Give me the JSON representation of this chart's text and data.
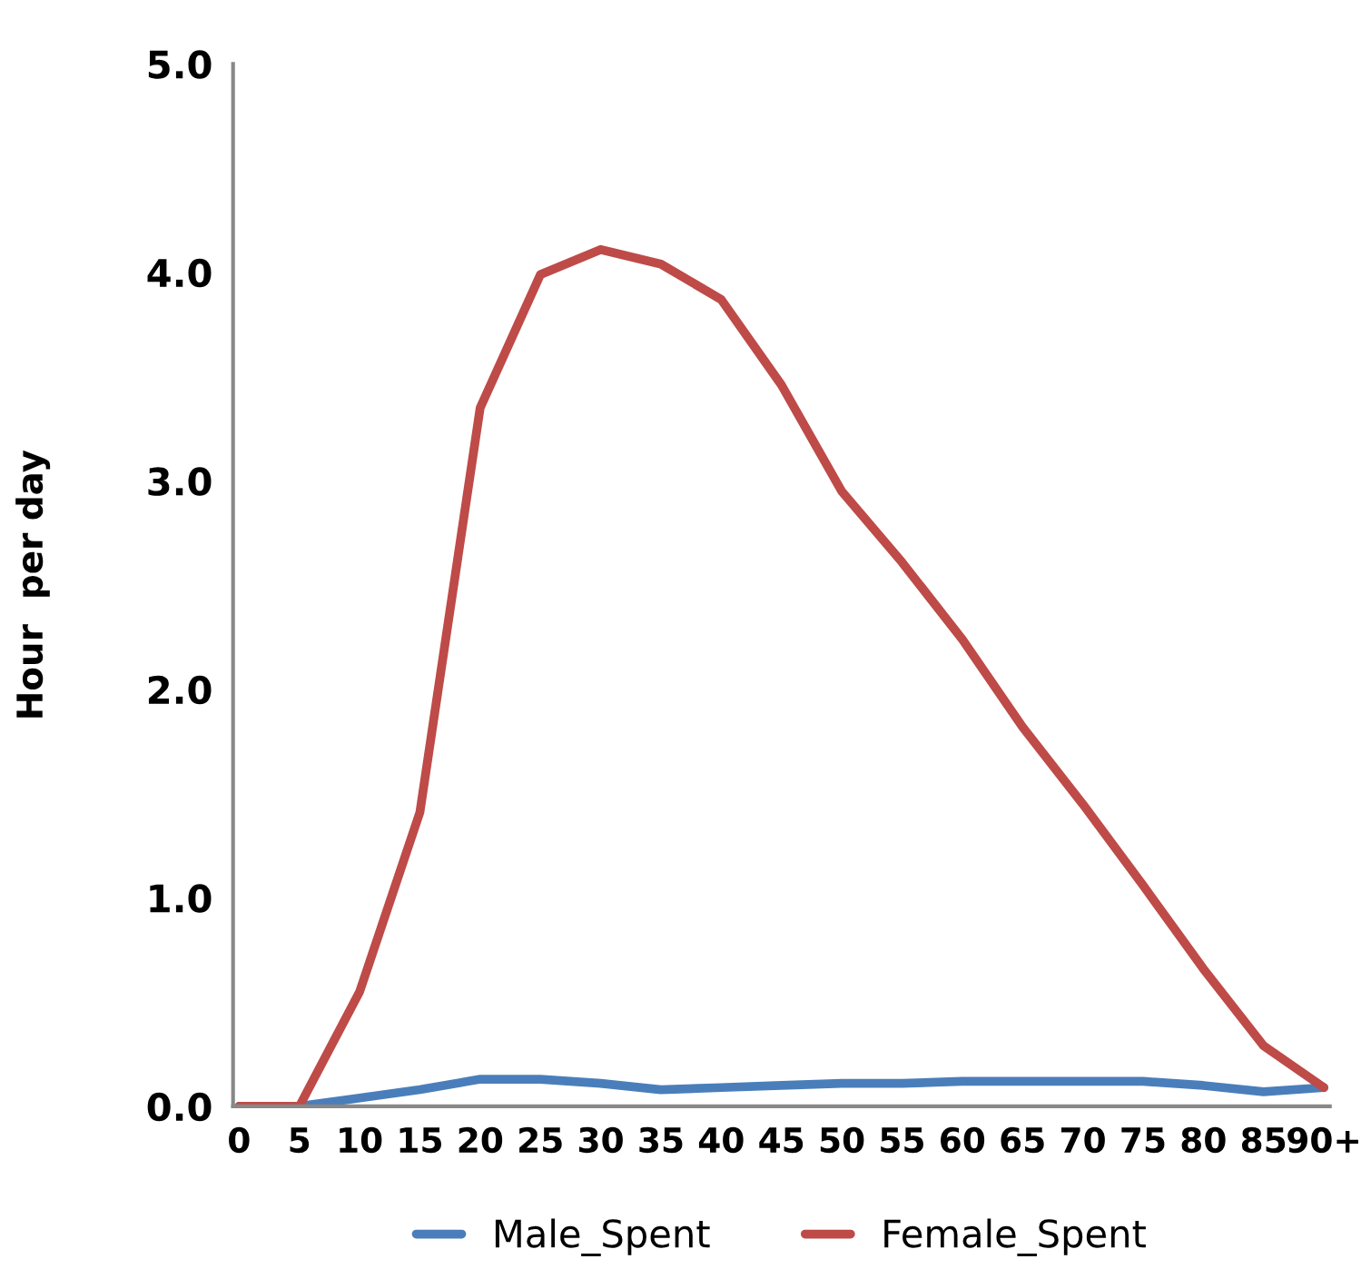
{
  "chart_data": {
    "type": "line",
    "ylabel": "Hour  per day",
    "categories": [
      "0",
      "5",
      "10",
      "15",
      "20",
      "25",
      "30",
      "35",
      "40",
      "45",
      "50",
      "55",
      "60",
      "65",
      "70",
      "75",
      "80",
      "85",
      "90+"
    ],
    "series": [
      {
        "name": "Male_Spent",
        "color": "#4a7ebb",
        "values": [
          0,
          0,
          0.04,
          0.08,
          0.13,
          0.13,
          0.11,
          0.08,
          0.09,
          0.1,
          0.11,
          0.11,
          0.12,
          0.12,
          0.12,
          0.12,
          0.1,
          0.07,
          0.09
        ]
      },
      {
        "name": "Female_Spent",
        "color": "#be4b48",
        "values": [
          0,
          0,
          0.55,
          1.41,
          3.35,
          3.99,
          4.11,
          4.04,
          3.87,
          3.46,
          2.95,
          2.61,
          2.24,
          1.82,
          1.45,
          1.06,
          0.66,
          0.29,
          0.09
        ]
      }
    ],
    "ylim": [
      0,
      5
    ],
    "yticks": [
      {
        "value": 0,
        "label": "0.0"
      },
      {
        "value": 1,
        "label": "1.0"
      },
      {
        "value": 2,
        "label": "2.0"
      },
      {
        "value": 3,
        "label": "3.0"
      },
      {
        "value": 4,
        "label": "4.0"
      },
      {
        "value": 5,
        "label": "5.0"
      }
    ],
    "grid": false,
    "legend": "bottom",
    "marker": "none",
    "line_style": "solid"
  }
}
